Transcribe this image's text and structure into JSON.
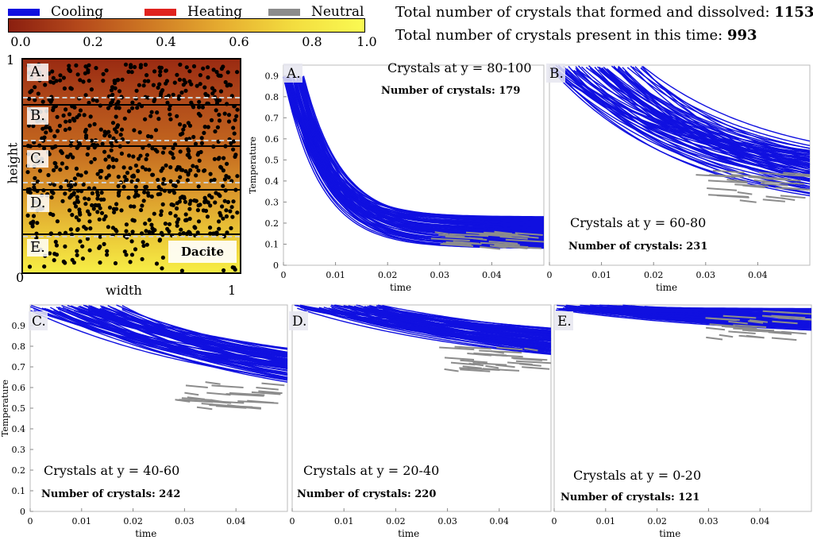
{
  "legend": [
    {
      "label": "Cooling",
      "color": "#1010e0"
    },
    {
      "label": "Heating",
      "color": "#e0231f"
    },
    {
      "label": "Neutral",
      "color": "#8c8c8c"
    }
  ],
  "stats": {
    "formed_label": "Total number of crystals that formed and dissolved:",
    "formed_value": "1153",
    "present_label": "Total number of crystals present in this time:",
    "present_value": "993"
  },
  "colorbar": {
    "ticks": [
      "0.0",
      "0.2",
      "0.4",
      "0.6",
      "0.8",
      "1.0"
    ],
    "colors": [
      "#8b1f10",
      "#b5491b",
      "#cf7a24",
      "#e6ad30",
      "#f3dd3f",
      "#fafa52"
    ]
  },
  "domain": {
    "ylabel": "height",
    "xlabel": "width",
    "y_top": "1",
    "y_bottom": "0",
    "x_right": "1",
    "zones": [
      "A.",
      "B.",
      "C.",
      "D.",
      "E."
    ],
    "rock_label": "Dacite"
  },
  "chart_data": [
    {
      "type": "line",
      "panel": "A.",
      "range_label": "Crystals at y = 80-100",
      "count_label": "Number of crystals: 179",
      "xlabel": "time",
      "ylabel": "Temperature",
      "xlim": [
        0,
        0.05
      ],
      "ylim": [
        0,
        0.95
      ],
      "xticks": [
        0,
        0.01,
        0.02,
        0.03,
        0.04
      ],
      "yticks": [
        0,
        0.1,
        0.2,
        0.3,
        0.4,
        0.5,
        0.6,
        0.7,
        0.8,
        0.9
      ],
      "curve_start": [
        0.0,
        0.9
      ],
      "curve_end_range": [
        0.08,
        0.23
      ],
      "decay": "fast",
      "neutral_band": [
        0.08,
        0.16
      ],
      "series": [
        {
          "name": "Cooling",
          "color": "#1010e0"
        },
        {
          "name": "Neutral",
          "color": "#8c8c8c"
        }
      ]
    },
    {
      "type": "line",
      "panel": "B.",
      "range_label": "Crystals at y = 60-80",
      "count_label": "Number of crystals: 231",
      "xlabel": "time",
      "ylabel": "",
      "xlim": [
        0,
        0.05
      ],
      "ylim": [
        0,
        0.95
      ],
      "xticks": [
        0,
        0.01,
        0.02,
        0.03,
        0.04
      ],
      "yticks": [],
      "curve_start": [
        0.0,
        0.95
      ],
      "curve_end_range": [
        0.23,
        0.47
      ],
      "decay": "medium",
      "neutral_band": [
        0.3,
        0.45
      ],
      "series": [
        {
          "name": "Cooling",
          "color": "#1010e0"
        },
        {
          "name": "Neutral",
          "color": "#8c8c8c"
        }
      ]
    },
    {
      "type": "line",
      "panel": "C.",
      "range_label": "Crystals at y = 40-60",
      "count_label": "Number of crystals: 242",
      "xlabel": "time",
      "ylabel": "Temperature",
      "xlim": [
        0,
        0.05
      ],
      "ylim": [
        0,
        1.0
      ],
      "xticks": [
        0,
        0.01,
        0.02,
        0.03,
        0.04
      ],
      "yticks": [
        0,
        0.1,
        0.2,
        0.3,
        0.4,
        0.5,
        0.6,
        0.7,
        0.8,
        0.9
      ],
      "curve_start": [
        0.0,
        1.0
      ],
      "curve_end_range": [
        0.45,
        0.66
      ],
      "decay": "slow",
      "neutral_band": [
        0.5,
        0.63
      ],
      "series": [
        {
          "name": "Cooling",
          "color": "#1010e0"
        },
        {
          "name": "Neutral",
          "color": "#8c8c8c"
        }
      ]
    },
    {
      "type": "line",
      "panel": "D.",
      "range_label": "Crystals at y = 20-40",
      "count_label": "Number of crystals: 220",
      "xlabel": "time",
      "ylabel": "",
      "xlim": [
        0,
        0.05
      ],
      "ylim": [
        0,
        1.0
      ],
      "xticks": [
        0,
        0.01,
        0.02,
        0.03,
        0.04
      ],
      "yticks": [],
      "curve_start": [
        0.0,
        1.0
      ],
      "curve_end_range": [
        0.64,
        0.82
      ],
      "decay": "slow",
      "neutral_band": [
        0.68,
        0.8
      ],
      "series": [
        {
          "name": "Cooling",
          "color": "#1010e0"
        },
        {
          "name": "Neutral",
          "color": "#8c8c8c"
        }
      ]
    },
    {
      "type": "line",
      "panel": "E.",
      "range_label": "Crystals at y = 0-20",
      "count_label": "Number of crystals: 121",
      "xlabel": "time",
      "ylabel": "",
      "xlim": [
        0,
        0.05
      ],
      "ylim": [
        0,
        1.0
      ],
      "xticks": [
        0,
        0.01,
        0.02,
        0.03,
        0.04
      ],
      "yticks": [],
      "curve_start": [
        0.0,
        1.0
      ],
      "curve_end_range": [
        0.83,
        0.98
      ],
      "decay": "slow",
      "neutral_band": [
        0.84,
        0.98
      ],
      "series": [
        {
          "name": "Cooling",
          "color": "#1010e0"
        },
        {
          "name": "Neutral",
          "color": "#8c8c8c"
        }
      ]
    }
  ]
}
